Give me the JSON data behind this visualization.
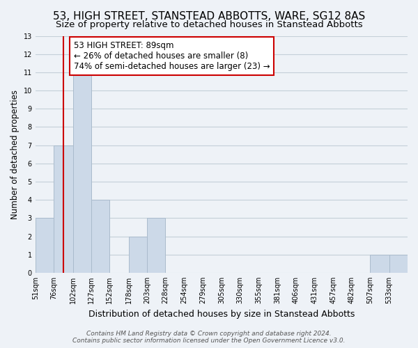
{
  "title": "53, HIGH STREET, STANSTEAD ABBOTTS, WARE, SG12 8AS",
  "subtitle": "Size of property relative to detached houses in Stanstead Abbotts",
  "xlabel": "Distribution of detached houses by size in Stanstead Abbotts",
  "ylabel": "Number of detached properties",
  "bin_edges": [
    51,
    76,
    102,
    127,
    152,
    178,
    203,
    228,
    254,
    279,
    305,
    330,
    355,
    381,
    406,
    431,
    457,
    482,
    507,
    533,
    558
  ],
  "bar_heights": [
    3,
    7,
    11,
    4,
    0,
    2,
    3,
    0,
    0,
    0,
    0,
    0,
    0,
    0,
    0,
    0,
    0,
    0,
    1,
    1
  ],
  "bar_color": "#ccd9e8",
  "bar_edgecolor": "#aabbcc",
  "property_size": 89,
  "vline_color": "#cc0000",
  "ylim": [
    0,
    13
  ],
  "yticks": [
    0,
    1,
    2,
    3,
    4,
    5,
    6,
    7,
    8,
    9,
    10,
    11,
    12,
    13
  ],
  "annotation_text": "53 HIGH STREET: 89sqm\n← 26% of detached houses are smaller (8)\n74% of semi-detached houses are larger (23) →",
  "footer_text": "Contains HM Land Registry data © Crown copyright and database right 2024.\nContains public sector information licensed under the Open Government Licence v3.0.",
  "grid_color": "#c4cfd8",
  "background_color": "#eef2f7",
  "title_fontsize": 11,
  "subtitle_fontsize": 9.5,
  "annotation_box_facecolor": "#ffffff",
  "annotation_box_edgecolor": "#cc0000",
  "annotation_fontsize": 8.5,
  "ylabel_fontsize": 8.5,
  "xlabel_fontsize": 9,
  "tick_fontsize": 7,
  "footer_fontsize": 6.5
}
